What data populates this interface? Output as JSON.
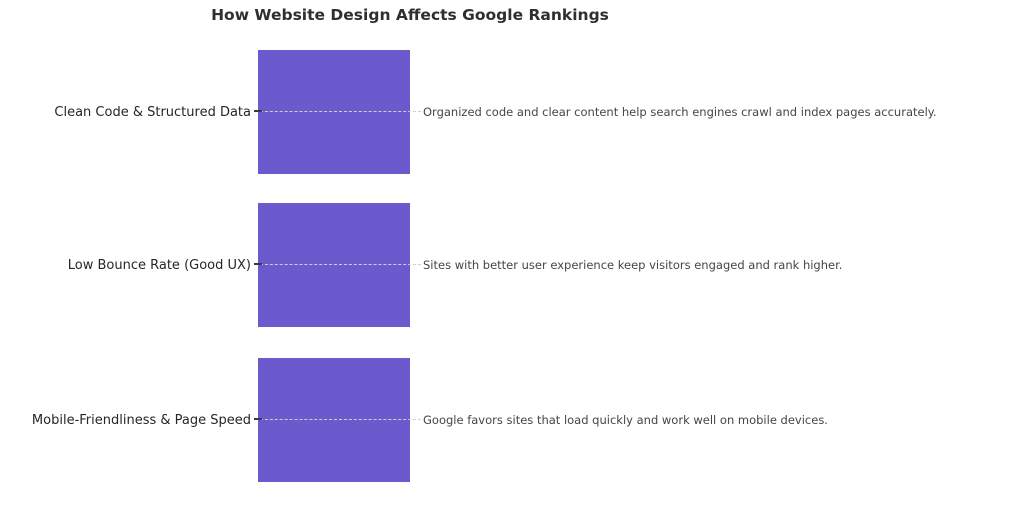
{
  "title": "How Website Design Affects Google Rankings",
  "colors": {
    "bar": "#6A5ACD",
    "connector": "#cfcfcf",
    "tick": "#3a3a3a",
    "title_text": "#2f2f2f",
    "label_text": "#262626",
    "description_text": "#454545",
    "background": "#ffffff"
  },
  "rows": [
    {
      "label": "Clean Code & Structured Data",
      "description": "Organized code and clear content help search engines crawl and index pages accurately."
    },
    {
      "label": "Low Bounce Rate (Good UX)",
      "description": "Sites with better user experience keep visitors engaged and rank higher."
    },
    {
      "label": "Mobile-Friendliness & Page Speed",
      "description": "Google favors sites that load quickly and work well on mobile devices."
    }
  ],
  "chart_data": {
    "type": "bar",
    "orientation": "horizontal",
    "title": "How Website Design Affects Google Rankings",
    "categories": [
      "Clean Code & Structured Data",
      "Low Bounce Rate (Good UX)",
      "Mobile-Friendliness & Page Speed"
    ],
    "values": [
      1,
      1,
      1
    ],
    "annotations": [
      "Organized code and clear content help search engines crawl and index pages accurately.",
      "Sites with better user experience keep visitors engaged and rank higher.",
      "Google favors sites that load quickly and work well on mobile devices."
    ],
    "bar_color": "#6A5ACD",
    "xlabel": "",
    "ylabel": "",
    "axis_ranges": "no numeric axis shown; all bars equal width",
    "grid": "fine dashed connector line across each row, drawn over the bars",
    "legend": "none"
  }
}
